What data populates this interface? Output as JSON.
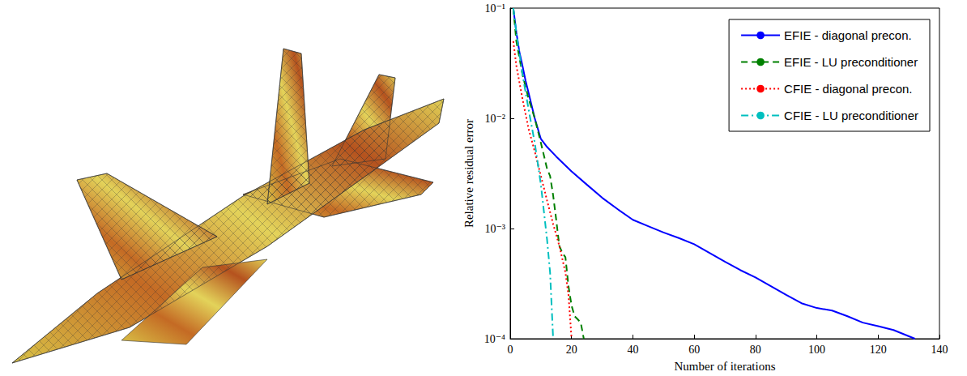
{
  "chart_data": {
    "type": "line",
    "x_label": "Number of iterations",
    "y_label": "Relative residual error",
    "xlim": [
      0,
      140
    ],
    "xticks": [
      0,
      20,
      40,
      60,
      80,
      100,
      120,
      140
    ],
    "ylim": [
      0.0001,
      0.1
    ],
    "yticks": [
      {
        "value": 0.0001,
        "label": "10⁻⁴"
      },
      {
        "value": 0.001,
        "label": "10⁻³"
      },
      {
        "value": 0.01,
        "label": "10⁻²"
      },
      {
        "value": 0.1,
        "label": "10⁻¹"
      }
    ],
    "log": "y",
    "grid": false,
    "legend": "upper right",
    "series": [
      {
        "name": "EFIE - diagonal precon.",
        "color": "#0000ff",
        "line_style": "solid",
        "x": [
          1,
          2,
          3,
          4,
          5,
          6,
          8,
          10,
          12,
          15,
          20,
          25,
          30,
          35,
          40,
          45,
          50,
          55,
          60,
          65,
          70,
          75,
          80,
          85,
          90,
          95,
          100,
          105,
          110,
          115,
          120,
          125,
          132
        ],
        "values": [
          0.1,
          0.06,
          0.04,
          0.03,
          0.022,
          0.017,
          0.01,
          0.0065,
          0.0055,
          0.0045,
          0.0033,
          0.0025,
          0.0019,
          0.0015,
          0.0012,
          0.00105,
          0.00092,
          0.00082,
          0.00072,
          0.0006,
          0.0005,
          0.00042,
          0.00036,
          0.0003,
          0.00025,
          0.00021,
          0.00019,
          0.00018,
          0.00016,
          0.00014,
          0.00013,
          0.00012,
          0.0001
        ]
      },
      {
        "name": "EFIE - LU preconditioner",
        "color": "#008000",
        "line_style": "dashed",
        "x": [
          1,
          2,
          4,
          6,
          8,
          10,
          12,
          13,
          14,
          15,
          16,
          17,
          18,
          19,
          20,
          21,
          22,
          23,
          24
        ],
        "values": [
          0.1,
          0.05,
          0.025,
          0.015,
          0.01,
          0.006,
          0.0035,
          0.003,
          0.002,
          0.0012,
          0.0007,
          0.0006,
          0.00055,
          0.0003,
          0.0002,
          0.00016,
          0.00015,
          0.00014,
          0.0001
        ]
      },
      {
        "name": "CFIE - diagonal precon.",
        "color": "#ff0000",
        "line_style": "dotted",
        "x": [
          1,
          2,
          4,
          6,
          8,
          10,
          12,
          14,
          16,
          18,
          19,
          20
        ],
        "values": [
          0.05,
          0.03,
          0.015,
          0.008,
          0.005,
          0.003,
          0.0018,
          0.0011,
          0.0007,
          0.0004,
          0.00025,
          0.0001
        ]
      },
      {
        "name": "CFIE - LU preconditioner",
        "color": "#00bfbf",
        "line_style": "dashdot",
        "x": [
          1,
          2,
          4,
          6,
          8,
          10,
          12,
          13,
          14
        ],
        "values": [
          0.1,
          0.06,
          0.025,
          0.012,
          0.006,
          0.0025,
          0.0008,
          0.0004,
          0.0001
        ]
      }
    ]
  }
}
